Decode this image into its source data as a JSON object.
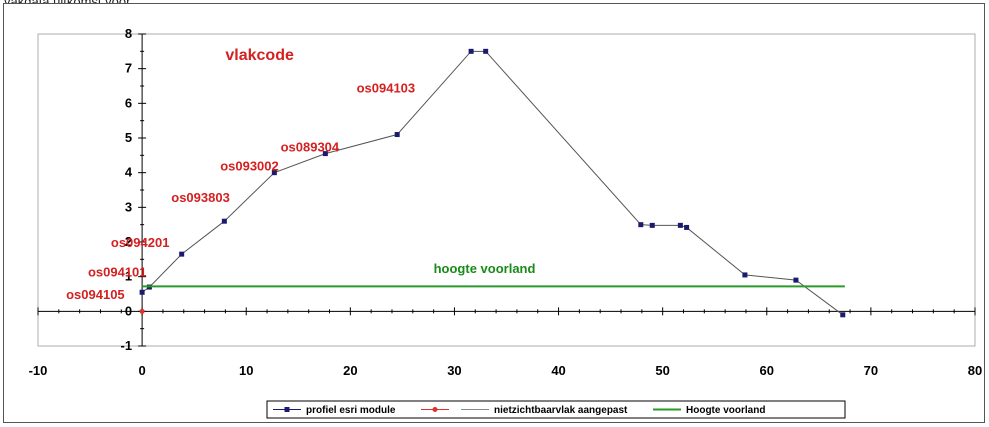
{
  "header": {
    "cut_text": "vakdata uitkomst voor ..."
  },
  "chart_data": {
    "type": "line",
    "title": "",
    "xlim": [
      -10,
      80
    ],
    "ylim": [
      -1,
      8
    ],
    "x_ticks": [
      -10,
      0,
      10,
      20,
      30,
      40,
      50,
      60,
      70,
      80
    ],
    "y_ticks": [
      -1,
      0,
      1,
      2,
      3,
      4,
      5,
      6,
      7,
      8
    ],
    "grid": false,
    "legend_position": "bottom",
    "series": [
      {
        "name": "profiel esri module",
        "color": "#1a1a6e",
        "marker": "square",
        "points": [
          [
            0,
            0.55
          ],
          [
            0.7,
            0.7
          ],
          [
            3.8,
            1.65
          ],
          [
            7.9,
            2.6
          ],
          [
            12.7,
            4.0
          ],
          [
            17.6,
            4.55
          ],
          [
            24.5,
            5.1
          ],
          [
            31.6,
            7.5
          ],
          [
            33.0,
            7.5
          ],
          [
            47.9,
            2.5
          ],
          [
            49.0,
            2.48
          ],
          [
            51.7,
            2.48
          ],
          [
            52.3,
            2.42
          ],
          [
            57.9,
            1.05
          ],
          [
            62.8,
            0.9
          ],
          [
            67.3,
            -0.1
          ]
        ]
      },
      {
        "name": "",
        "color": "#e03030",
        "marker": "circle",
        "points": [
          [
            0,
            0
          ]
        ]
      },
      {
        "name": "nietzichtbaarvlak aangepast",
        "color": "#888888",
        "marker": "none",
        "points": []
      },
      {
        "name": "Hoogte voorland",
        "color": "#2a9a2a",
        "marker": "none",
        "points": [
          [
            0,
            0.72
          ],
          [
            67.5,
            0.72
          ]
        ]
      }
    ],
    "annotations": {
      "title_text": "vlakcode",
      "hoogte_label": "hoogte voorland",
      "vlakcodes": [
        {
          "text": "os094105",
          "x": -7.3,
          "y": 0.5
        },
        {
          "text": "os094101",
          "x": -5.2,
          "y": 1.15
        },
        {
          "text": "os094201",
          "x": -3.0,
          "y": 2.0
        },
        {
          "text": "os093803",
          "x": 2.8,
          "y": 3.3
        },
        {
          "text": "os093002",
          "x": 7.5,
          "y": 4.2
        },
        {
          "text": "os089304",
          "x": 13.3,
          "y": 4.75
        },
        {
          "text": "os094103",
          "x": 20.6,
          "y": 6.45
        }
      ]
    }
  }
}
